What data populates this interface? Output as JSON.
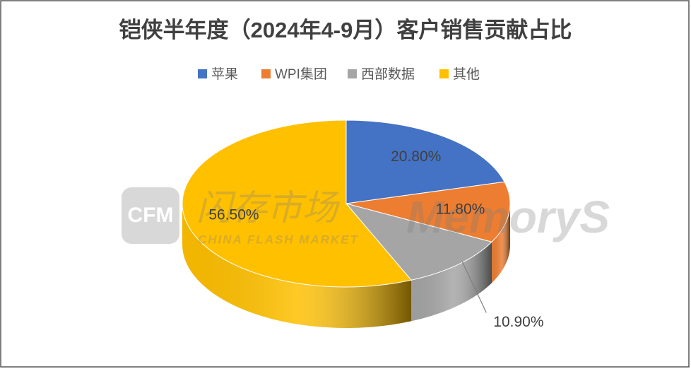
{
  "chart_data": {
    "type": "pie",
    "title": "铠侠半年度（2024年4-9月）客户销售贡献占比",
    "categories": [
      "苹果",
      "WPI集团",
      "西部数据",
      "其他"
    ],
    "values": [
      20.8,
      11.8,
      10.9,
      56.5
    ],
    "value_labels": [
      "20.80%",
      "11.80%",
      "10.90%",
      "56.50%"
    ],
    "colors": [
      "#4472c4",
      "#ed7d31",
      "#a5a5a5",
      "#ffc000"
    ],
    "legend": "top",
    "watermarks": [
      "CFM",
      "闪存市场",
      "CHINA FLASH MARKET",
      "MemoryS"
    ]
  }
}
